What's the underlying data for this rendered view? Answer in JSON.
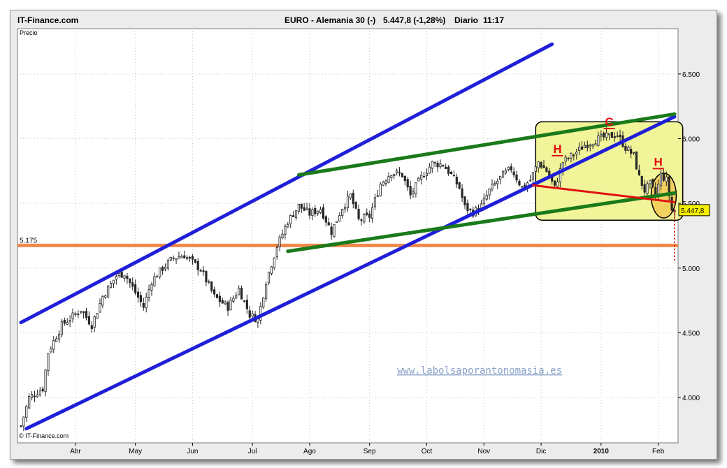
{
  "header": {
    "site": "IT-Finance.com",
    "instrument": "EURO - Alemania 30 (-)",
    "price": "5.447,8 (-1,28%)",
    "period": "Diario",
    "time": "11:17"
  },
  "footer": {
    "copyright": "© IT-Finance.com",
    "watermark": "www.labolsaporantonomasia.es"
  },
  "chart_data": {
    "type": "candlestick",
    "title": "EURO - Alemania 30 (-)",
    "ylabel": "Precio",
    "ylim": [
      3650,
      6850
    ],
    "y_ticks": [
      4000,
      4500,
      5000,
      5500,
      6000,
      6500
    ],
    "y_tick_labels": [
      "4.000",
      "4.500",
      "5.000",
      "5.500",
      "6.000",
      "6.500"
    ],
    "x_labels": [
      "Abr",
      "May",
      "Jun",
      "Jul",
      "Ago",
      "Sep",
      "Oct",
      "Nov",
      "Dic",
      "2010",
      "Feb"
    ],
    "x_label_days": [
      20,
      42,
      63,
      85,
      106,
      128,
      149,
      170,
      191,
      213,
      234
    ],
    "x_range_days": [
      0,
      240
    ],
    "last_price": 5447.8,
    "last_price_label": "5.447,8",
    "support_level": 5175,
    "support_label": "5.175",
    "price_path": [
      {
        "day": 0,
        "close": 3780
      },
      {
        "day": 3,
        "close": 4000
      },
      {
        "day": 8,
        "close": 4070
      },
      {
        "day": 10,
        "close": 4350
      },
      {
        "day": 15,
        "close": 4560
      },
      {
        "day": 22,
        "close": 4680
      },
      {
        "day": 26,
        "close": 4560
      },
      {
        "day": 30,
        "close": 4780
      },
      {
        "day": 35,
        "close": 4940
      },
      {
        "day": 38,
        "close": 4960
      },
      {
        "day": 45,
        "close": 4700
      },
      {
        "day": 48,
        "close": 4900
      },
      {
        "day": 52,
        "close": 5000
      },
      {
        "day": 56,
        "close": 5080
      },
      {
        "day": 60,
        "close": 5100
      },
      {
        "day": 66,
        "close": 4990
      },
      {
        "day": 71,
        "close": 4780
      },
      {
        "day": 76,
        "close": 4700
      },
      {
        "day": 80,
        "close": 4840
      },
      {
        "day": 84,
        "close": 4640
      },
      {
        "day": 87,
        "close": 4600
      },
      {
        "day": 90,
        "close": 4900
      },
      {
        "day": 94,
        "close": 5170
      },
      {
        "day": 98,
        "close": 5360
      },
      {
        "day": 102,
        "close": 5480
      },
      {
        "day": 106,
        "close": 5420
      },
      {
        "day": 110,
        "close": 5460
      },
      {
        "day": 114,
        "close": 5280
      },
      {
        "day": 118,
        "close": 5470
      },
      {
        "day": 121,
        "close": 5560
      },
      {
        "day": 124,
        "close": 5370
      },
      {
        "day": 128,
        "close": 5400
      },
      {
        "day": 132,
        "close": 5650
      },
      {
        "day": 136,
        "close": 5740
      },
      {
        "day": 140,
        "close": 5720
      },
      {
        "day": 143,
        "close": 5560
      },
      {
        "day": 147,
        "close": 5700
      },
      {
        "day": 151,
        "close": 5810
      },
      {
        "day": 155,
        "close": 5800
      },
      {
        "day": 158,
        "close": 5720
      },
      {
        "day": 161,
        "close": 5620
      },
      {
        "day": 163,
        "close": 5470
      },
      {
        "day": 166,
        "close": 5430
      },
      {
        "day": 169,
        "close": 5480
      },
      {
        "day": 172,
        "close": 5600
      },
      {
        "day": 177,
        "close": 5720
      },
      {
        "day": 180,
        "close": 5770
      },
      {
        "day": 184,
        "close": 5620
      },
      {
        "day": 187,
        "close": 5680
      },
      {
        "day": 190,
        "close": 5820
      },
      {
        "day": 193,
        "close": 5750
      },
      {
        "day": 196,
        "close": 5620
      },
      {
        "day": 199,
        "close": 5820
      },
      {
        "day": 203,
        "close": 5880
      },
      {
        "day": 207,
        "close": 5950
      },
      {
        "day": 212,
        "close": 6000
      },
      {
        "day": 216,
        "close": 6020
      },
      {
        "day": 219,
        "close": 6030
      },
      {
        "day": 222,
        "close": 5930
      },
      {
        "day": 225,
        "close": 5870
      },
      {
        "day": 227,
        "close": 5700
      },
      {
        "day": 229,
        "close": 5600
      },
      {
        "day": 231,
        "close": 5650
      },
      {
        "day": 233,
        "close": 5560
      },
      {
        "day": 235,
        "close": 5720
      },
      {
        "day": 237,
        "close": 5680
      },
      {
        "day": 239,
        "close": 5448
      }
    ],
    "trend_lines": [
      {
        "name": "channel-upper",
        "color": "#1f1fd8",
        "from": {
          "day": 0,
          "price": 4580
        },
        "to": {
          "day": 195,
          "price": 6730
        }
      },
      {
        "name": "channel-lower",
        "color": "#1f1fd8",
        "from": {
          "day": 2,
          "price": 3760
        },
        "to": {
          "day": 240,
          "price": 6170
        }
      },
      {
        "name": "wedge-upper",
        "color": "#1a7a1a",
        "from": {
          "day": 102,
          "price": 5720
        },
        "to": {
          "day": 240,
          "price": 6190
        }
      },
      {
        "name": "wedge-lower",
        "color": "#1a7a1a",
        "from": {
          "day": 98,
          "price": 5130
        },
        "to": {
          "day": 240,
          "price": 5580
        }
      },
      {
        "name": "neckline",
        "color": "#e01010",
        "from": {
          "day": 188,
          "price": 5640
        },
        "to": {
          "day": 240,
          "price": 5510
        }
      }
    ],
    "annotations": [
      {
        "text": "H",
        "day": 197,
        "price": 5890,
        "color": "#e01010"
      },
      {
        "text": "C",
        "day": 216,
        "price": 6100,
        "color": "#e01010"
      },
      {
        "text": "H",
        "day": 234,
        "price": 5790,
        "color": "#e01010"
      }
    ],
    "highlight_box": {
      "from_day": 189,
      "to_day": 243,
      "price_top": 6130,
      "price_bottom": 5370,
      "color": "#f2f49a"
    },
    "highlight_ellipse": {
      "day": 236,
      "price": 5560,
      "color": "#f2d060"
    },
    "projection": {
      "day": 240,
      "from_price": 5448,
      "to_price": 5060,
      "color": "#e01010"
    },
    "colors": {
      "up": "#ffffff",
      "down": "#2b2b2b",
      "support": "#f08a4b",
      "bg": "#ffffff"
    }
  }
}
